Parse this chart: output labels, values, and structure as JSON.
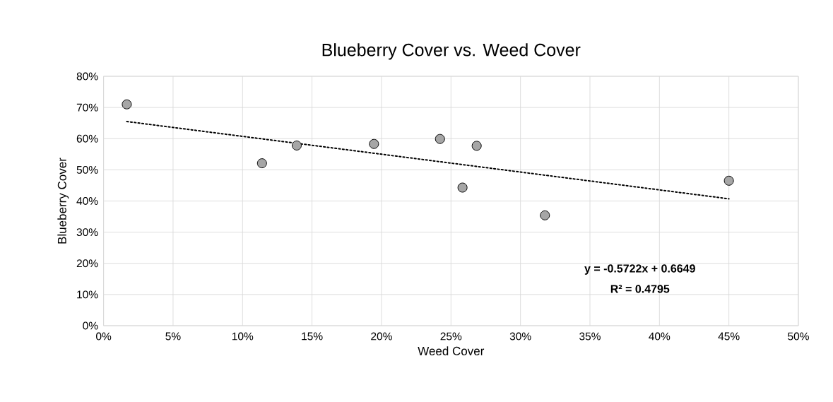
{
  "chart_data": {
    "type": "scatter",
    "title": "Blueberry Cover vs. Weed Cover",
    "xlabel": "Weed Cover",
    "ylabel": "Blueberry Cover",
    "series": [
      {
        "color": "#a6a6a6",
        "marker": "circle",
        "x": [
          1.67,
          11.4,
          13.9,
          19.46,
          24.21,
          26.85,
          25.83,
          31.76,
          45.0
        ],
        "values": [
          71.0,
          52.1,
          57.8,
          58.3,
          59.9,
          57.7,
          44.3,
          35.4,
          46.5
        ]
      },
      {
        "type": "line",
        "color": "#000000",
        "marker": "none",
        "line_style": "dotted",
        "x": [
          1.67,
          45.0
        ],
        "values": [
          65.5,
          40.7
        ]
      }
    ],
    "annotations": [
      "y = -0.5722x + 0.6649",
      "R² = 0.4795"
    ],
    "xlim": [
      0,
      50
    ],
    "ylim": [
      0,
      80
    ],
    "xticks": [
      {
        "value": 0,
        "label": "0%"
      },
      {
        "value": 5,
        "label": "5%"
      },
      {
        "value": 10,
        "label": "10%"
      },
      {
        "value": 15,
        "label": "15%"
      },
      {
        "value": 20,
        "label": "20%"
      },
      {
        "value": 25,
        "label": "25%"
      },
      {
        "value": 30,
        "label": "30%"
      },
      {
        "value": 35,
        "label": "35%"
      },
      {
        "value": 40,
        "label": "40%"
      },
      {
        "value": 45,
        "label": "45%"
      },
      {
        "value": 50,
        "label": "50%"
      }
    ],
    "yticks": [
      {
        "value": 0,
        "label": "0%"
      },
      {
        "value": 10,
        "label": "10%"
      },
      {
        "value": 20,
        "label": "20%"
      },
      {
        "value": 30,
        "label": "30%"
      },
      {
        "value": 40,
        "label": "40%"
      },
      {
        "value": 50,
        "label": "50%"
      },
      {
        "value": 60,
        "label": "60%"
      },
      {
        "value": 70,
        "label": "70%"
      },
      {
        "value": 80,
        "label": "80%"
      }
    ],
    "grid": true
  }
}
